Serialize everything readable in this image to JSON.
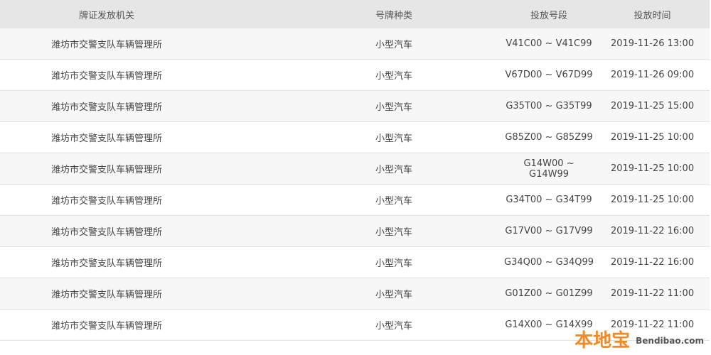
{
  "headers": [
    "牌证发放机关",
    "号牌种类",
    "投放号段",
    "投放时间"
  ],
  "rows": [
    [
      "潍坊市交警支队车辆管理所",
      "小型汽车",
      "V41C00 ~ V41C99",
      "2019-11-26 13:00"
    ],
    [
      "潍坊市交警支队车辆管理所",
      "小型汽车",
      "V67D00 ~ V67D99",
      "2019-11-26 09:00"
    ],
    [
      "潍坊市交警支队车辆管理所",
      "小型汽车",
      "G35T00 ~ G35T99",
      "2019-11-25 15:00"
    ],
    [
      "潍坊市交警支队车辆管理所",
      "小型汽车",
      "G85Z00 ~ G85Z99",
      "2019-11-25 10:00"
    ],
    [
      "潍坊市交警支队车辆管理所",
      "小型汽车",
      "G14W00 ~ G14W99",
      "2019-11-25 10:00"
    ],
    [
      "潍坊市交警支队车辆管理所",
      "小型汽车",
      "G34T00 ~ G34T99",
      "2019-11-25 10:00"
    ],
    [
      "潍坊市交警支队车辆管理所",
      "小型汽车",
      "G17V00 ~ G17V99",
      "2019-11-22 16:00"
    ],
    [
      "潍坊市交警支队车辆管理所",
      "小型汽车",
      "G34Q00 ~ G34Q99",
      "2019-11-22 16:00"
    ],
    [
      "潍坊市交警支队车辆管理所",
      "小型汽车",
      "G01Z00 ~ G01Z99",
      "2019-11-22 11:00"
    ],
    [
      "潍坊市交警支队车辆管理所",
      "小型汽车",
      "G14X00 ~ G14X99",
      "2019-11-22 11:00"
    ]
  ],
  "watermark": {
    "cn": "本地宝",
    "en": "Bendibao.com",
    "color": "#f08a28"
  }
}
